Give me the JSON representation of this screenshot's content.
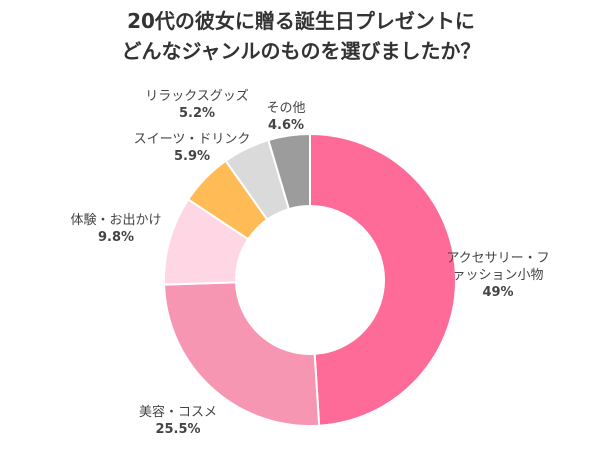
{
  "chart_data": {
    "type": "pie",
    "title_lines": [
      "20代の彼女に贈る誕生日プレゼントに",
      "どんなジャンルのものを選びましたか？"
    ],
    "slices": [
      {
        "label_lines": [
          "アクセサリー・フ",
          "ァッション小物"
        ],
        "value": 49,
        "value_text": "49%",
        "color": "#FF6B99"
      },
      {
        "label_lines": [
          "美容・コスメ"
        ],
        "value": 25.5,
        "value_text": "25.5%",
        "color": "#F796B3"
      },
      {
        "label_lines": [
          "体験・お出かけ"
        ],
        "value": 9.8,
        "value_text": "9.8%",
        "color": "#FFD6E4"
      },
      {
        "label_lines": [
          "スイーツ・ドリンク"
        ],
        "value": 5.9,
        "value_text": "5.9%",
        "color": "#FFBB55"
      },
      {
        "label_lines": [
          "リラックスグッズ"
        ],
        "value": 5.2,
        "value_text": "5.2%",
        "color": "#DADADA"
      },
      {
        "label_lines": [
          "その他"
        ],
        "value": 4.6,
        "value_text": "4.6%",
        "color": "#9C9C9C"
      }
    ]
  }
}
